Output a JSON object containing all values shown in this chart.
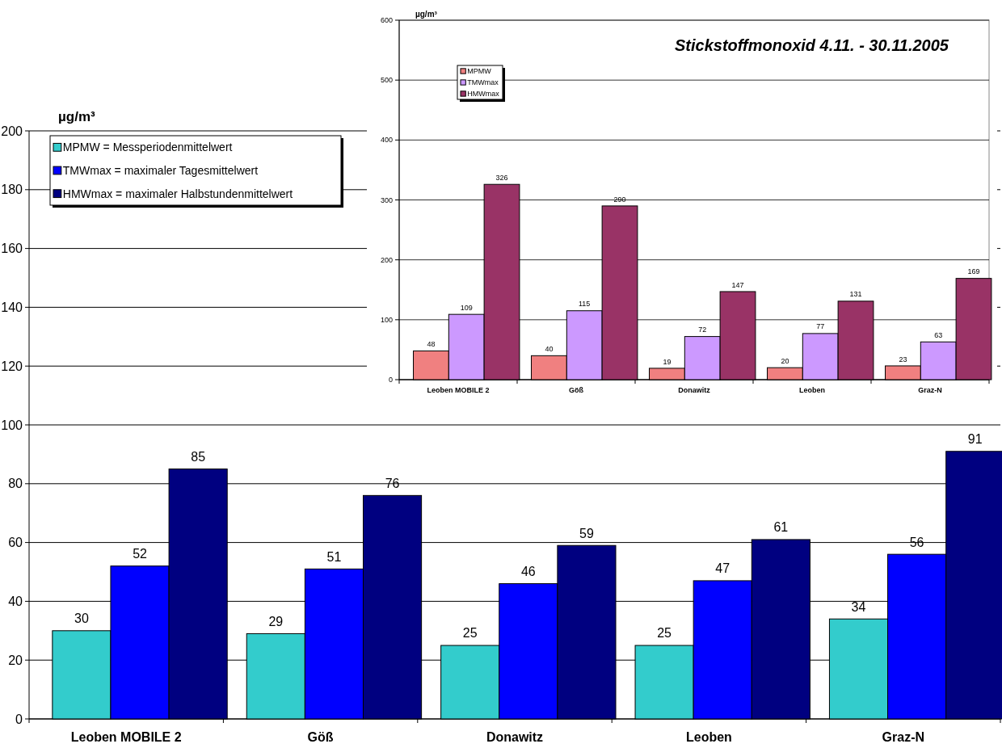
{
  "chart_data": [
    {
      "type": "bar",
      "ylabel": "µg/m³",
      "categories": [
        "Leoben MOBILE 2",
        "Göß",
        "Donawitz",
        "Leoben",
        "Graz-N"
      ],
      "series": [
        {
          "name": "MPMW = Messperiodenmittelwert",
          "color": "#33cccc",
          "values": [
            30,
            29,
            25,
            25,
            34
          ]
        },
        {
          "name": "TMWmax = maximaler Tagesmittelwert",
          "color": "#0000ff",
          "values": [
            52,
            51,
            46,
            47,
            56
          ]
        },
        {
          "name": "HMWmax = maximaler Halbstundenmittelwert",
          "color": "#000080",
          "values": [
            85,
            76,
            59,
            61,
            91
          ]
        }
      ],
      "ylim": [
        0,
        200
      ],
      "yticks": [
        0,
        20,
        40,
        60,
        80,
        100,
        120,
        140,
        160,
        180,
        200
      ],
      "grid": "y",
      "legend": "top left",
      "data_labels": true
    },
    {
      "type": "bar",
      "title": "Stickstoffmonoxid  4.11. - 30.11.2005",
      "ylabel": "µg/m³",
      "categories": [
        "Leoben MOBILE 2",
        "Göß",
        "Donawitz",
        "Leoben",
        "Graz-N"
      ],
      "series": [
        {
          "name": "MPMW",
          "color": "#f08080",
          "values": [
            48,
            40,
            19,
            20,
            23
          ]
        },
        {
          "name": "TMWmax",
          "color": "#cc99ff",
          "values": [
            109,
            115,
            72,
            77,
            63
          ]
        },
        {
          "name": "HMWmax",
          "color": "#993366",
          "values": [
            326,
            290,
            147,
            131,
            169
          ]
        }
      ],
      "ylim": [
        0,
        600
      ],
      "yticks": [
        0,
        100,
        200,
        300,
        400,
        500,
        600
      ],
      "grid": "y",
      "legend": "top left",
      "data_labels": true
    }
  ]
}
